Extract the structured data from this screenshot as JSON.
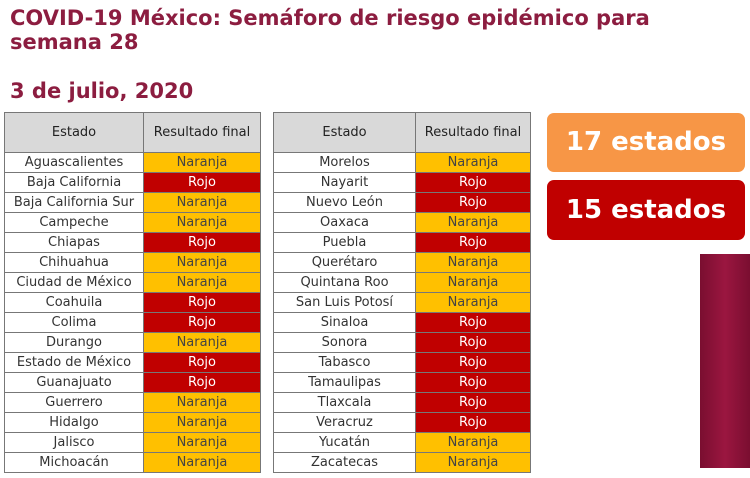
{
  "title": "COVID-19 México: Semáforo de riesgo epidémico para semana 28",
  "date": "3 de julio, 2020",
  "headers": {
    "estado": "Estado",
    "resultado": "Resultado final"
  },
  "colors": {
    "Naranja": "#ffc000",
    "Rojo": "#c00000",
    "title": "#8c1d40"
  },
  "table_left": [
    [
      "Aguascalientes",
      "Naranja"
    ],
    [
      "Baja California",
      "Rojo"
    ],
    [
      "Baja California Sur",
      "Naranja"
    ],
    [
      "Campeche",
      "Naranja"
    ],
    [
      "Chiapas",
      "Rojo"
    ],
    [
      "Chihuahua",
      "Naranja"
    ],
    [
      "Ciudad de México",
      "Naranja"
    ],
    [
      "Coahuila",
      "Rojo"
    ],
    [
      "Colima",
      "Rojo"
    ],
    [
      "Durango",
      "Naranja"
    ],
    [
      "Estado de México",
      "Rojo"
    ],
    [
      "Guanajuato",
      "Rojo"
    ],
    [
      "Guerrero",
      "Naranja"
    ],
    [
      "Hidalgo",
      "Naranja"
    ],
    [
      "Jalisco",
      "Naranja"
    ],
    [
      "Michoacán",
      "Naranja"
    ]
  ],
  "table_right": [
    [
      "Morelos",
      "Naranja"
    ],
    [
      "Nayarit",
      "Rojo"
    ],
    [
      "Nuevo León",
      "Rojo"
    ],
    [
      "Oaxaca",
      "Naranja"
    ],
    [
      "Puebla",
      "Rojo"
    ],
    [
      "Querétaro",
      "Naranja"
    ],
    [
      "Quintana Roo",
      "Naranja"
    ],
    [
      "San Luis Potosí",
      "Naranja"
    ],
    [
      "Sinaloa",
      "Rojo"
    ],
    [
      "Sonora",
      "Rojo"
    ],
    [
      "Tabasco",
      "Rojo"
    ],
    [
      "Tamaulipas",
      "Rojo"
    ],
    [
      "Tlaxcala",
      "Rojo"
    ],
    [
      "Veracruz",
      "Rojo"
    ],
    [
      "Yucatán",
      "Naranja"
    ],
    [
      "Zacatecas",
      "Naranja"
    ]
  ],
  "summary": {
    "naranja": "17 estados",
    "rojo": "15 estados"
  }
}
